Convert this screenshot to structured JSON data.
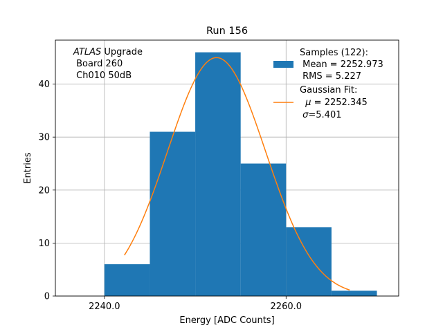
{
  "chart_data": {
    "type": "histogram",
    "title": "Run 156",
    "xlabel": "Energy [ADC Counts]",
    "ylabel": "Entries",
    "xlim": [
      2234.6,
      2272.4
    ],
    "ylim": [
      0,
      48.3
    ],
    "grid": true,
    "xticks": [
      2240,
      2260
    ],
    "xtick_labels": [
      "2240.0",
      "2260.0"
    ],
    "yticks": [
      0,
      10,
      20,
      30,
      40
    ],
    "ytick_labels": [
      "0",
      "10",
      "20",
      "30",
      "40"
    ],
    "bins": [
      {
        "x0": 2240,
        "x1": 2245,
        "count": 6
      },
      {
        "x0": 2245,
        "x1": 2250,
        "count": 31
      },
      {
        "x0": 2250,
        "x1": 2255,
        "count": 46
      },
      {
        "x0": 2255,
        "x1": 2260,
        "count": 25
      },
      {
        "x0": 2260,
        "x1": 2265,
        "count": 13
      },
      {
        "x0": 2265,
        "x1": 2270,
        "count": 1
      }
    ],
    "fit": {
      "type": "gaussian",
      "amplitude": 45,
      "mu": 2252.345,
      "sigma": 5.401,
      "x_range": [
        2242.2,
        2267.0
      ]
    },
    "colors": {
      "histogram": "#1f77b4",
      "fit": "#ff7f0e",
      "grid": "#b0b0b0"
    },
    "annotation": {
      "italic": "ATLAS",
      "rest": " Upgrade",
      "line2": " Board 260",
      "line3": " Ch010 50dB"
    },
    "legend": {
      "position": "top-right",
      "samples": {
        "label": "Samples (122):",
        "mean": " Mean = 2252.973",
        "rms": " RMS = 5.227"
      },
      "fit": {
        "label": "Gaussian Fit:",
        "mu_symbol": "μ",
        "mu_value": " = 2252.345",
        "sigma_symbol": "σ",
        "sigma_value": "=5.401"
      }
    }
  }
}
